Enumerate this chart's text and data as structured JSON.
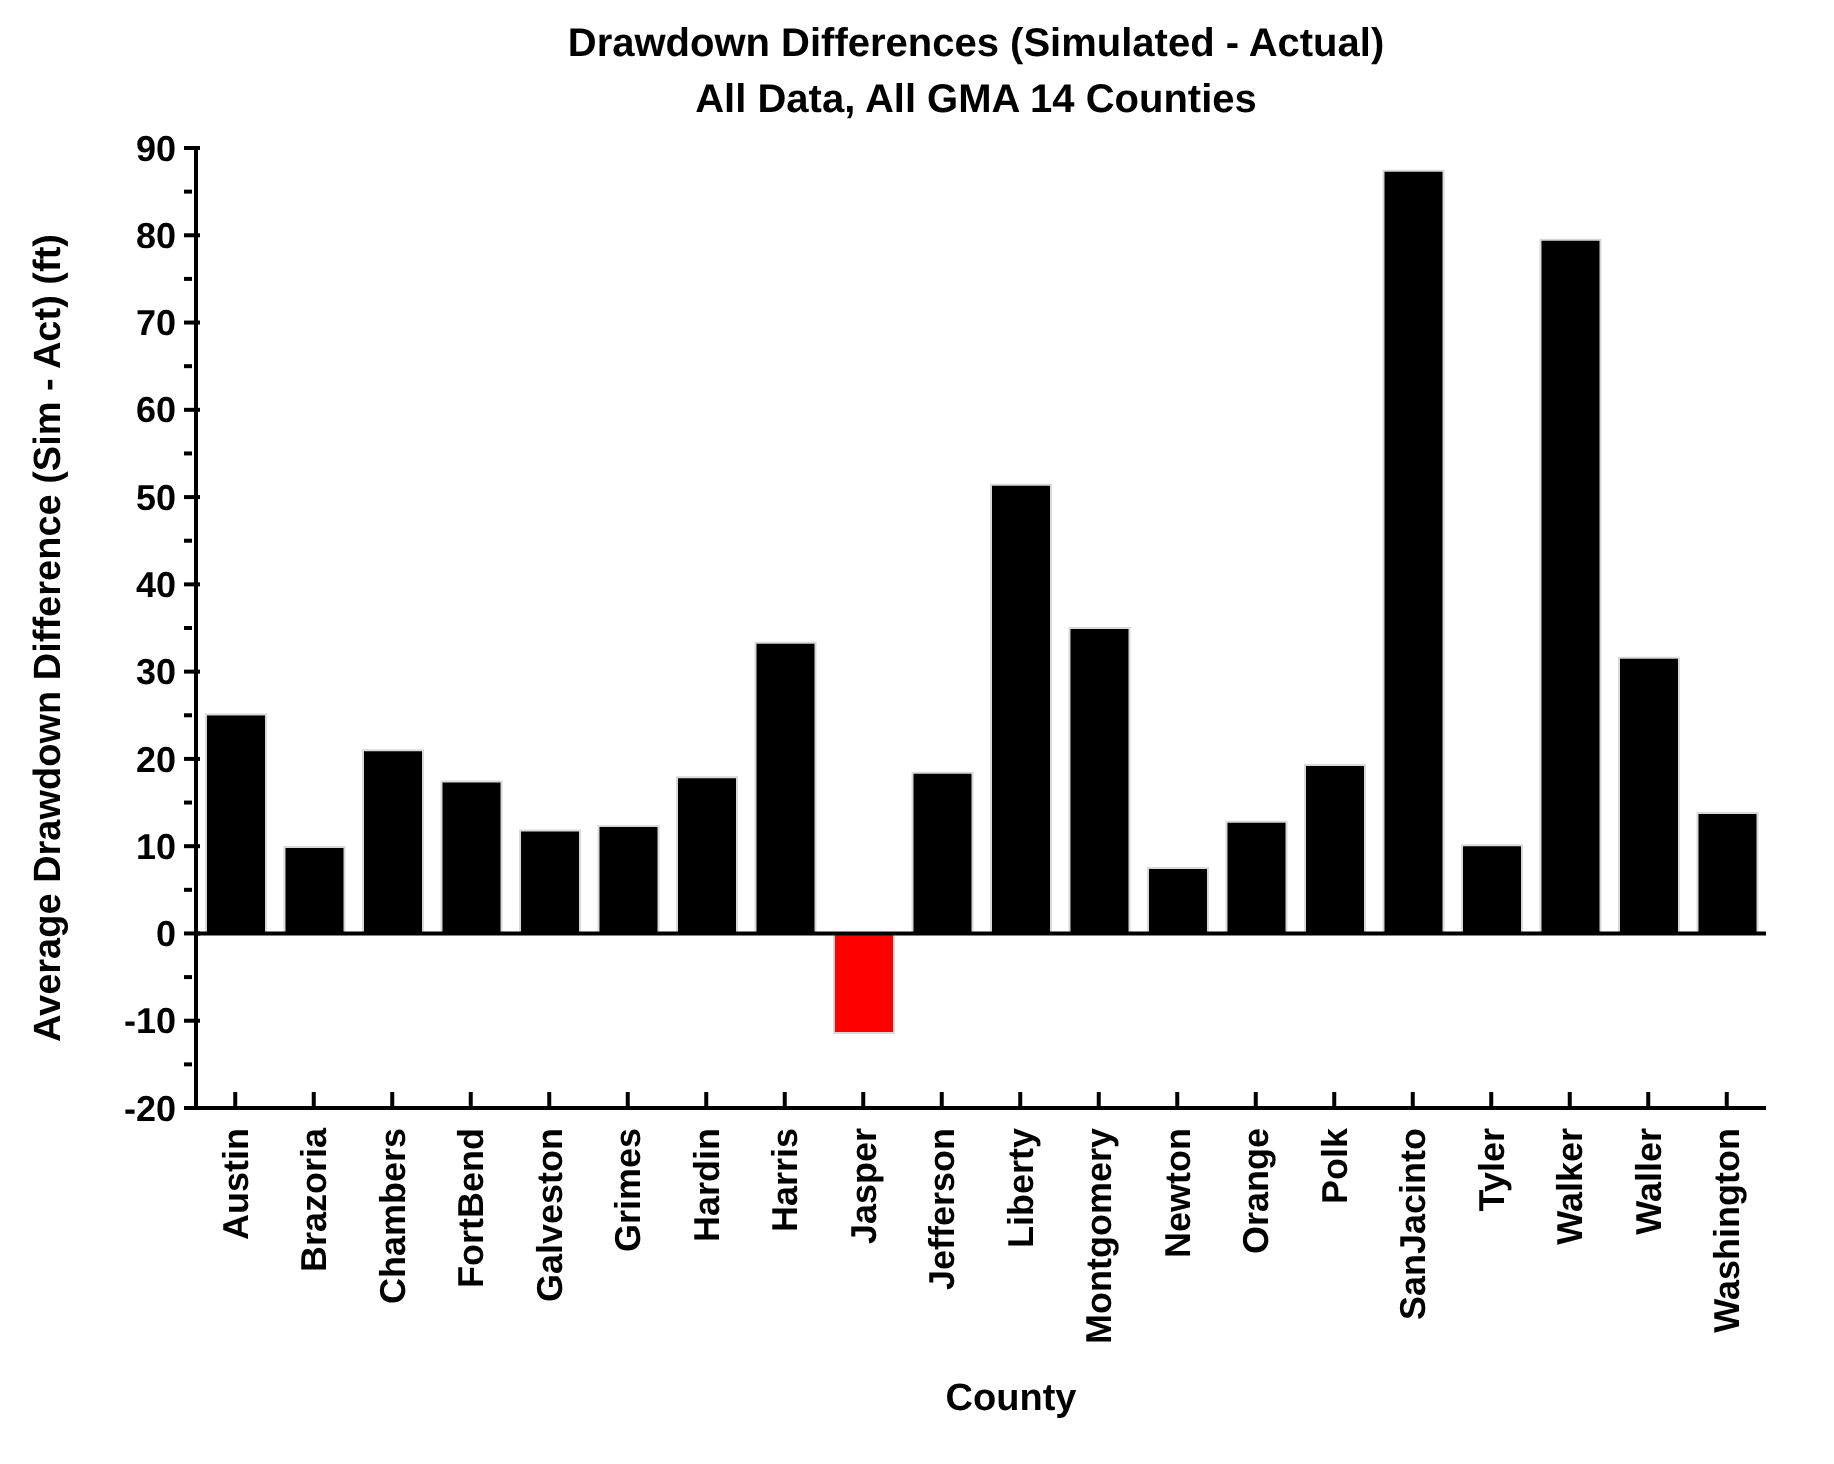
{
  "chart_data": {
    "type": "bar",
    "title": "Drawdown Differences (Simulated - Actual)",
    "subtitle": "All Data, All GMA 14 Counties",
    "xlabel": "County",
    "ylabel": "Average Drawdown Difference (Sim - Act) (ft)",
    "categories": [
      "Austin",
      "Brazoria",
      "Chambers",
      "FortBend",
      "Galveston",
      "Grimes",
      "Hardin",
      "Harris",
      "Jasper",
      "Jefferson",
      "Liberty",
      "Montgomery",
      "Newton",
      "Orange",
      "Polk",
      "SanJacinto",
      "Tyler",
      "Walker",
      "Waller",
      "Washington"
    ],
    "values": [
      25.1,
      9.9,
      21,
      17.4,
      11.8,
      12.3,
      17.9,
      33.3,
      -11.4,
      18.4,
      51.4,
      35,
      7.5,
      12.8,
      19.3,
      87.4,
      10.1,
      79.5,
      31.6,
      13.8
    ],
    "colors": [
      "#000000",
      "#000000",
      "#000000",
      "#000000",
      "#000000",
      "#000000",
      "#000000",
      "#000000",
      "#ff0000",
      "#000000",
      "#000000",
      "#000000",
      "#000000",
      "#000000",
      "#000000",
      "#000000",
      "#000000",
      "#000000",
      "#000000",
      "#000000"
    ],
    "ylim": [
      -20,
      90
    ],
    "yticks": [
      -20,
      {
        "value": -15,
        "label": null
      },
      -10,
      {
        "value": -5,
        "label": null
      },
      0,
      {
        "value": 5,
        "label": null
      },
      10,
      {
        "value": 15,
        "label": null
      },
      20,
      {
        "value": 25,
        "label": null
      },
      30,
      {
        "value": 35,
        "label": null
      },
      40,
      {
        "value": 45,
        "label": null
      },
      50,
      {
        "value": 55,
        "label": null
      },
      60,
      {
        "value": 65,
        "label": null
      },
      70,
      {
        "value": 75,
        "label": null
      },
      80,
      {
        "value": 85,
        "label": null
      },
      90
    ]
  }
}
